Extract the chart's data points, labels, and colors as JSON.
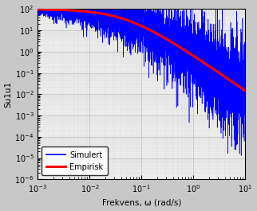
{
  "title": "",
  "xlabel": "Frekvens, ω (rad/s)",
  "ylabel": "Su1u1",
  "xlim": [
    0.001,
    10
  ],
  "ylim": [
    1e-06,
    100.0
  ],
  "plot_bg_color": "#ebebeb",
  "fig_bg_color": "#c8c8c8",
  "legend_labels": [
    "Simulert",
    "Empirisk"
  ],
  "blue_linewidth": 0.4,
  "red_linewidth": 2.2,
  "sim_n_points": 5000,
  "sim_seed": 7,
  "kaimal_plateau": 100.0,
  "kaimal_omega0": 0.05
}
